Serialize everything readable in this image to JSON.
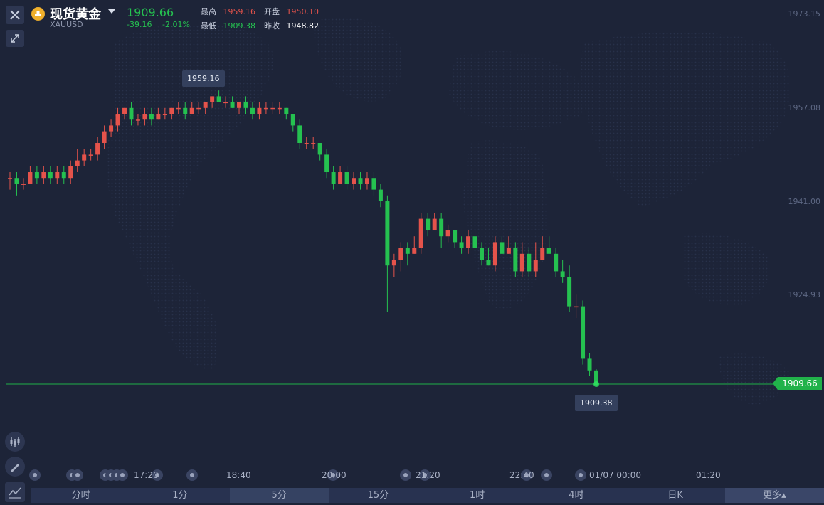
{
  "header": {
    "name": "现货黄金",
    "symbol": "XAUUSD",
    "price": "1909.66",
    "change": "-39.16",
    "change_pct": "-2.01%",
    "stats": {
      "high_label": "最高",
      "high": "1959.16",
      "open_label": "开盘",
      "open": "1950.10",
      "low_label": "最低",
      "low": "1909.38",
      "prev_label": "昨收",
      "prev": "1948.82"
    }
  },
  "y_axis": [
    "1973.15",
    "1957.08",
    "1941.00",
    "1924.93"
  ],
  "last_price_tag": "1909.66",
  "tooltips": {
    "max": "1959.16",
    "min": "1909.38"
  },
  "x_axis": [
    "17:20",
    "18:40",
    "20:00",
    "21:20",
    "22:40",
    "01/07 00:00",
    "01:20"
  ],
  "tabs": [
    "分时",
    "1分",
    "5分",
    "15分",
    "1时",
    "4时",
    "日K",
    "更多▴"
  ],
  "active_tab": "5分",
  "colors": {
    "up": "#e5534b",
    "down": "#25c150",
    "background": "#1d2438"
  },
  "icons": {
    "close": "close-icon",
    "collapse": "collapse-icon",
    "coin": "gold-coin-icon"
  },
  "chart_data": {
    "type": "candlestick",
    "ylim": [
      1903,
      1975
    ],
    "candles": [
      [
        1945,
        1945,
        1943,
        1946
      ],
      [
        1945,
        1944,
        1942,
        1946
      ],
      [
        1944,
        1944,
        1943,
        1945
      ],
      [
        1944,
        1946,
        1944,
        1947
      ],
      [
        1946,
        1945,
        1944,
        1947
      ],
      [
        1945,
        1946,
        1944,
        1947
      ],
      [
        1946,
        1945,
        1944,
        1947
      ],
      [
        1945,
        1946,
        1944,
        1947
      ],
      [
        1946,
        1945,
        1944,
        1947
      ],
      [
        1945,
        1947,
        1944,
        1948
      ],
      [
        1947,
        1948,
        1946,
        1950
      ],
      [
        1948,
        1949,
        1947,
        1950
      ],
      [
        1949,
        1949,
        1948,
        1950
      ],
      [
        1949,
        1951,
        1948,
        1952
      ],
      [
        1951,
        1953,
        1950,
        1954
      ],
      [
        1953,
        1954,
        1952,
        1955
      ],
      [
        1954,
        1956,
        1953,
        1957
      ],
      [
        1956,
        1957,
        1955,
        1957
      ],
      [
        1957,
        1955,
        1954,
        1958
      ],
      [
        1955,
        1955,
        1954,
        1956
      ],
      [
        1955,
        1956,
        1954,
        1957
      ],
      [
        1956,
        1955,
        1954,
        1957
      ],
      [
        1955,
        1956,
        1955,
        1957
      ],
      [
        1956,
        1956,
        1955,
        1957
      ],
      [
        1956,
        1957,
        1955,
        1957
      ],
      [
        1957,
        1957,
        1956,
        1958
      ],
      [
        1957,
        1956,
        1955,
        1958
      ],
      [
        1956,
        1957,
        1956,
        1958
      ],
      [
        1957,
        1957,
        1956,
        1958
      ],
      [
        1957,
        1958,
        1956,
        1958
      ],
      [
        1958,
        1959,
        1957,
        1959
      ],
      [
        1959,
        1958,
        1958,
        1960
      ],
      [
        1958,
        1958,
        1957,
        1959
      ],
      [
        1958,
        1957,
        1957,
        1959
      ],
      [
        1957,
        1958,
        1956,
        1958
      ],
      [
        1958,
        1957,
        1956,
        1959
      ],
      [
        1957,
        1956,
        1955,
        1958
      ],
      [
        1956,
        1957,
        1955,
        1958
      ],
      [
        1957,
        1957,
        1956,
        1958
      ],
      [
        1957,
        1957,
        1956,
        1958
      ],
      [
        1957,
        1957,
        1956,
        1958
      ],
      [
        1957,
        1956,
        1955,
        1957
      ],
      [
        1956,
        1954,
        1953,
        1956
      ],
      [
        1954,
        1951,
        1950,
        1955
      ],
      [
        1951,
        1951,
        1950,
        1952
      ],
      [
        1951,
        1951,
        1950,
        1952
      ],
      [
        1951,
        1949,
        1948,
        1951
      ],
      [
        1949,
        1946,
        1945,
        1950
      ],
      [
        1946,
        1944,
        1943,
        1947
      ],
      [
        1944,
        1946,
        1944,
        1947
      ],
      [
        1946,
        1944,
        1943,
        1947
      ],
      [
        1944,
        1945,
        1943,
        1946
      ],
      [
        1945,
        1944,
        1943,
        1946
      ],
      [
        1944,
        1945,
        1943,
        1946
      ],
      [
        1945,
        1943,
        1942,
        1946
      ],
      [
        1943,
        1941,
        1940,
        1944
      ],
      [
        1941,
        1930,
        1922,
        1942
      ],
      [
        1930,
        1931,
        1928,
        1932
      ],
      [
        1931,
        1933,
        1929,
        1934
      ],
      [
        1933,
        1932,
        1930,
        1934
      ],
      [
        1932,
        1933,
        1932,
        1935
      ],
      [
        1933,
        1938,
        1932,
        1939
      ],
      [
        1938,
        1936,
        1935,
        1939
      ],
      [
        1936,
        1938,
        1936,
        1939
      ],
      [
        1938,
        1935,
        1933,
        1939
      ],
      [
        1935,
        1936,
        1934,
        1937
      ],
      [
        1936,
        1934,
        1933,
        1936
      ],
      [
        1934,
        1933,
        1932,
        1935
      ],
      [
        1933,
        1935,
        1932,
        1936
      ],
      [
        1935,
        1933,
        1932,
        1936
      ],
      [
        1933,
        1931,
        1930,
        1934
      ],
      [
        1931,
        1930,
        1930,
        1933
      ],
      [
        1930,
        1934,
        1929,
        1935
      ],
      [
        1934,
        1932,
        1932,
        1935
      ],
      [
        1932,
        1933,
        1932,
        1935
      ],
      [
        1933,
        1929,
        1928,
        1934
      ],
      [
        1929,
        1932,
        1928,
        1934
      ],
      [
        1932,
        1929,
        1928,
        1933
      ],
      [
        1929,
        1931,
        1928,
        1934
      ],
      [
        1931,
        1933,
        1931,
        1935
      ],
      [
        1933,
        1932,
        1932,
        1935
      ],
      [
        1932,
        1929,
        1928,
        1933
      ],
      [
        1929,
        1928,
        1927,
        1931
      ],
      [
        1928,
        1923,
        1922,
        1930
      ],
      [
        1923,
        1923,
        1921,
        1925
      ],
      [
        1923,
        1914,
        1913,
        1924
      ],
      [
        1914,
        1912,
        1911,
        1915
      ],
      [
        1912,
        1909.5,
        1909.4,
        1912.2
      ]
    ]
  }
}
